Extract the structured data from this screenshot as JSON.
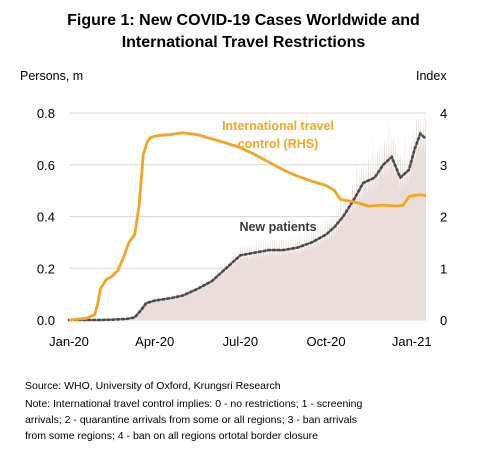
{
  "figure": {
    "title_line1": "Figure 1: New COVID-19 Cases Worldwide and",
    "title_line2": "International Travel Restrictions"
  },
  "notes": {
    "source": "Source: WHO, University of Oxford, Krungsri Research",
    "note_line1": "Note: International travel control implies: 0 - no restrictions; 1 - screening",
    "note_line2": "arrivals; 2 - quarantine arrivals from some or all regions; 3 - ban arrivals",
    "note_line3": "from some regions; 4 - ban on all regions ortotal border closure"
  },
  "colors": {
    "travel_line": "#F2A51F",
    "patients_area": "#EADDDB",
    "patients_dots": "#4A4A4A",
    "grid": "#D9D9D9"
  },
  "chart_data": {
    "type": "line",
    "title": "Figure 1: New COVID-19 Cases Worldwide and International Travel Restrictions",
    "left_axis": {
      "unit_label": "Persons, m",
      "ylim": [
        0,
        0.8
      ],
      "ticks": [
        "0.0",
        "0.2",
        "0.4",
        "0.6",
        "0.8"
      ]
    },
    "right_axis": {
      "unit_label": "Index",
      "ylim": [
        0,
        4
      ],
      "ticks": [
        "0",
        "1",
        "2",
        "3",
        "4"
      ]
    },
    "x_ticks": [
      "Jan-20",
      "Apr-20",
      "Jul-20",
      "Oct-20",
      "Jan-21"
    ],
    "x_tick_months": [
      0,
      3,
      6,
      9,
      12
    ],
    "grid": "horizontal",
    "annotations": [
      {
        "text_line1": "International travel",
        "text_line2": "control (RHS)",
        "series": "travel"
      },
      {
        "text_line1": "New patients",
        "series": "patients"
      }
    ],
    "series": [
      {
        "name": "International travel control (RHS)",
        "axis": "right",
        "style": "line",
        "x_month": [
          0,
          0.6,
          0.9,
          1.0,
          1.1,
          1.3,
          1.5,
          1.7,
          1.9,
          2.1,
          2.3,
          2.45,
          2.6,
          2.75,
          2.85,
          3.0,
          3.2,
          3.5,
          4.0,
          4.5,
          5.0,
          5.5,
          6.0,
          6.5,
          7.0,
          7.5,
          8.0,
          8.5,
          9.0,
          9.3,
          9.5,
          10.0,
          10.5,
          11.0,
          11.5,
          11.7,
          11.9,
          12.0,
          12.3,
          12.5
        ],
        "values": [
          0,
          0.03,
          0.1,
          0.3,
          0.6,
          0.78,
          0.84,
          0.95,
          1.2,
          1.5,
          1.65,
          2.2,
          3.2,
          3.45,
          3.52,
          3.55,
          3.57,
          3.58,
          3.62,
          3.58,
          3.5,
          3.42,
          3.33,
          3.2,
          3.05,
          2.9,
          2.78,
          2.68,
          2.6,
          2.5,
          2.33,
          2.28,
          2.2,
          2.22,
          2.2,
          2.22,
          2.38,
          2.4,
          2.42,
          2.4
        ]
      },
      {
        "name": "New patients",
        "axis": "left",
        "style": "dotted-line over area",
        "x_month": [
          0,
          1,
          1.5,
          2.0,
          2.3,
          2.5,
          2.7,
          3.0,
          3.3,
          3.6,
          4.0,
          4.5,
          5.0,
          5.5,
          6.0,
          6.5,
          7.0,
          7.5,
          8.0,
          8.5,
          9.0,
          9.3,
          9.6,
          10.0,
          10.3,
          10.7,
          11.0,
          11.3,
          11.6,
          11.9,
          12.1,
          12.3,
          12.5
        ],
        "values": [
          0.0,
          0.0,
          0.001,
          0.004,
          0.01,
          0.035,
          0.065,
          0.075,
          0.08,
          0.085,
          0.095,
          0.12,
          0.15,
          0.2,
          0.25,
          0.26,
          0.27,
          0.27,
          0.28,
          0.3,
          0.33,
          0.36,
          0.4,
          0.47,
          0.53,
          0.55,
          0.6,
          0.63,
          0.55,
          0.58,
          0.66,
          0.72,
          0.7
        ]
      }
    ]
  }
}
